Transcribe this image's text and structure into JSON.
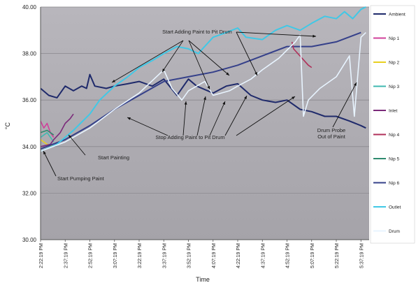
{
  "chart_data": {
    "type": "line",
    "title": "",
    "xlabel": "Time",
    "ylabel": "°C",
    "ylim": [
      30,
      40
    ],
    "yticks": [
      "30.00",
      "32.00",
      "34.00",
      "36.00",
      "38.00",
      "40.00"
    ],
    "x_tick_labels": [
      "2:22:19 PM",
      "2:37:19 PM",
      "2:52:19 PM",
      "3:07:19 PM",
      "3:22:19 PM",
      "3:37:19 PM",
      "3:52:19 PM",
      "4:07:19 PM",
      "4:22:19 PM",
      "4:37:19 PM",
      "4:52:19 PM",
      "5:07:19 PM",
      "5:22:19 PM",
      "5:37:19 PM"
    ],
    "grid": "horizontal",
    "legend": "right",
    "x_start": "2:22:19 PM",
    "x_end": "5:42:19 PM",
    "series": [
      {
        "name": "Ambient",
        "color": "#1f2a6b",
        "points": [
          [
            "2:22:19 PM",
            36.5
          ],
          [
            "2:27:19 PM",
            36.2
          ],
          [
            "2:32:19 PM",
            36.1
          ],
          [
            "2:37:19 PM",
            36.6
          ],
          [
            "2:42:19 PM",
            36.4
          ],
          [
            "2:47:19 PM",
            36.6
          ],
          [
            "2:50:19 PM",
            36.5
          ],
          [
            "2:52:19 PM",
            37.1
          ],
          [
            "2:55:19 PM",
            36.6
          ],
          [
            "3:02:19 PM",
            36.5
          ],
          [
            "3:07:19 PM",
            36.6
          ],
          [
            "3:15:19 PM",
            36.7
          ],
          [
            "3:22:19 PM",
            36.8
          ],
          [
            "3:30:19 PM",
            36.6
          ],
          [
            "3:37:19 PM",
            36.9
          ],
          [
            "3:45:19 PM",
            36.2
          ],
          [
            "3:52:19 PM",
            36.9
          ],
          [
            "3:57:19 PM",
            36.6
          ],
          [
            "4:07:19 PM",
            36.3
          ],
          [
            "4:15:19 PM",
            36.6
          ],
          [
            "4:22:19 PM",
            36.7
          ],
          [
            "4:30:19 PM",
            36.2
          ],
          [
            "4:37:19 PM",
            36.0
          ],
          [
            "4:45:19 PM",
            35.9
          ],
          [
            "4:52:19 PM",
            36.0
          ],
          [
            "5:00:19 PM",
            35.6
          ],
          [
            "5:07:19 PM",
            35.5
          ],
          [
            "5:15:19 PM",
            35.3
          ],
          [
            "5:22:19 PM",
            35.3
          ],
          [
            "5:30:19 PM",
            35.1
          ],
          [
            "5:37:19 PM",
            34.9
          ],
          [
            "5:40:19 PM",
            34.8
          ]
        ]
      },
      {
        "name": "Nip 1",
        "color": "#d0409a",
        "points": [
          [
            "2:22:19 PM",
            35.1
          ],
          [
            "2:24:19 PM",
            34.8
          ],
          [
            "2:26:19 PM",
            35.0
          ],
          [
            "2:28:19 PM",
            34.6
          ],
          [
            "2:30:19 PM",
            34.4
          ]
        ]
      },
      {
        "name": "Nip 2",
        "color": "#e8d020",
        "points": [
          [
            "2:22:19 PM",
            34.3
          ],
          [
            "2:26:19 PM",
            34.1
          ],
          [
            "2:30:19 PM",
            34.0
          ]
        ]
      },
      {
        "name": "Nip 3",
        "color": "#3fb8b0",
        "points": [
          [
            "2:22:19 PM",
            34.4
          ],
          [
            "2:26:19 PM",
            34.6
          ],
          [
            "2:30:19 PM",
            34.2
          ]
        ]
      },
      {
        "name": "Inlet",
        "color": "#7b2a7a",
        "points": [
          [
            "2:22:19 PM",
            34.0
          ],
          [
            "2:28:19 PM",
            34.1
          ],
          [
            "2:30:19 PM",
            34.3
          ],
          [
            "2:34:19 PM",
            34.6
          ],
          [
            "2:37:19 PM",
            35.0
          ],
          [
            "2:40:19 PM",
            35.2
          ],
          [
            "2:42:19 PM",
            35.4
          ]
        ]
      },
      {
        "name": "Nip 4",
        "color": "#b0305a",
        "points": [
          [
            "4:55:19 PM",
            38.5
          ],
          [
            "4:56:19 PM",
            38.2
          ],
          [
            "5:05:19 PM",
            37.5
          ],
          [
            "5:07:19 PM",
            37.4
          ]
        ]
      },
      {
        "name": "Nip 5",
        "color": "#2e8a6e",
        "points": [
          [
            "2:22:19 PM",
            34.6
          ],
          [
            "2:26:19 PM",
            34.7
          ],
          [
            "2:30:19 PM",
            34.5
          ]
        ]
      },
      {
        "name": "Nip 6",
        "color": "#35408a",
        "points": [
          [
            "2:22:19 PM",
            33.9
          ],
          [
            "2:37:19 PM",
            34.3
          ],
          [
            "2:52:19 PM",
            34.9
          ],
          [
            "3:07:19 PM",
            35.6
          ],
          [
            "3:22:19 PM",
            36.2
          ],
          [
            "3:37:19 PM",
            36.8
          ],
          [
            "3:52:19 PM",
            37.0
          ],
          [
            "4:07:19 PM",
            37.2
          ],
          [
            "4:22:19 PM",
            37.5
          ],
          [
            "4:37:19 PM",
            37.9
          ],
          [
            "4:52:19 PM",
            38.3
          ],
          [
            "5:07:19 PM",
            38.3
          ],
          [
            "5:22:19 PM",
            38.5
          ],
          [
            "5:37:19 PM",
            38.9
          ]
        ]
      },
      {
        "name": "Outlet",
        "color": "#40c8e6",
        "points": [
          [
            "2:22:19 PM",
            33.8
          ],
          [
            "2:32:19 PM",
            34.1
          ],
          [
            "2:42:19 PM",
            34.7
          ],
          [
            "2:52:19 PM",
            35.4
          ],
          [
            "2:58:19 PM",
            36.0
          ],
          [
            "3:07:19 PM",
            36.6
          ],
          [
            "3:15:19 PM",
            37.0
          ],
          [
            "3:22:19 PM",
            37.4
          ],
          [
            "3:30:19 PM",
            37.7
          ],
          [
            "3:37:19 PM",
            38.0
          ],
          [
            "3:45:19 PM",
            38.3
          ],
          [
            "3:52:19 PM",
            38.2
          ],
          [
            "3:58:19 PM",
            38.0
          ],
          [
            "4:07:19 PM",
            38.7
          ],
          [
            "4:15:19 PM",
            38.9
          ],
          [
            "4:22:19 PM",
            39.1
          ],
          [
            "4:27:19 PM",
            38.7
          ],
          [
            "4:37:19 PM",
            38.6
          ],
          [
            "4:45:19 PM",
            39.0
          ],
          [
            "4:52:19 PM",
            39.2
          ],
          [
            "5:00:19 PM",
            39.0
          ],
          [
            "5:07:19 PM",
            39.3
          ],
          [
            "5:15:19 PM",
            39.6
          ],
          [
            "5:22:19 PM",
            39.5
          ],
          [
            "5:27:19 PM",
            39.8
          ],
          [
            "5:32:19 PM",
            39.5
          ],
          [
            "5:37:19 PM",
            39.9
          ],
          [
            "5:40:19 PM",
            40.0
          ]
        ]
      },
      {
        "name": "Drum",
        "color": "#e8f4ff",
        "points": [
          [
            "2:22:19 PM",
            33.8
          ],
          [
            "2:37:19 PM",
            34.2
          ],
          [
            "2:52:19 PM",
            34.8
          ],
          [
            "3:07:19 PM",
            35.6
          ],
          [
            "3:22:19 PM",
            36.3
          ],
          [
            "3:37:19 PM",
            37.3
          ],
          [
            "3:42:19 PM",
            36.5
          ],
          [
            "3:48:19 PM",
            36.0
          ],
          [
            "3:52:19 PM",
            36.4
          ],
          [
            "4:02:19 PM",
            36.8
          ],
          [
            "4:07:19 PM",
            36.2
          ],
          [
            "4:17:19 PM",
            36.4
          ],
          [
            "4:22:19 PM",
            36.6
          ],
          [
            "4:30:19 PM",
            36.9
          ],
          [
            "4:37:19 PM",
            37.3
          ],
          [
            "4:47:19 PM",
            37.8
          ],
          [
            "4:57:19 PM",
            38.5
          ],
          [
            "5:00:19 PM",
            38.8
          ],
          [
            "5:02:19 PM",
            35.3
          ],
          [
            "5:05:19 PM",
            36.0
          ],
          [
            "5:12:19 PM",
            36.5
          ],
          [
            "5:22:19 PM",
            37.0
          ],
          [
            "5:30:19 PM",
            37.9
          ],
          [
            "5:33:19 PM",
            35.3
          ],
          [
            "5:37:19 PM",
            38.7
          ],
          [
            "5:40:19 PM",
            38.9
          ]
        ]
      }
    ],
    "annotations": [
      {
        "text": "Start Adding Paint to Pit Drum"
      },
      {
        "text": "Stop Adding Paint to Pit Drum"
      },
      {
        "text": "Drum Probe\nOut of Paint"
      },
      {
        "text": "Start Painting"
      },
      {
        "text": "Start Pumping Paint"
      }
    ]
  }
}
